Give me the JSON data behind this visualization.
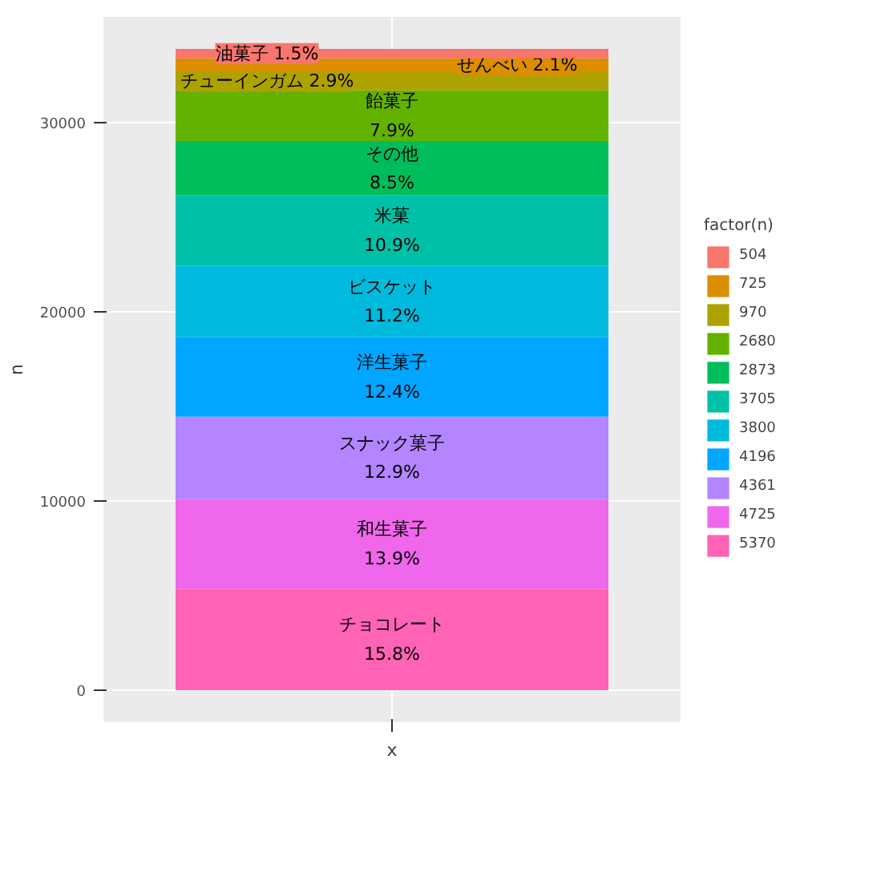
{
  "chart_data": {
    "type": "bar",
    "stacked": true,
    "xlabel": "x",
    "ylabel": "n",
    "legend_title": "factor(n)",
    "legend": "right",
    "grid": true,
    "tick_labels": "y",
    "categories": [
      null
    ],
    "ylim": [
      -1700,
      35600
    ],
    "yticks": [
      0,
      10000,
      20000,
      30000
    ],
    "series": [
      {
        "name": "5370",
        "color": "#FF63B6",
        "values": [
          5370
        ],
        "value_labels": [
          "チョコレート\n15.8%"
        ]
      },
      {
        "name": "4725",
        "color": "#EF67EB",
        "values": [
          4725
        ],
        "value_labels": [
          "和生菓子\n13.9%"
        ]
      },
      {
        "name": "4361",
        "color": "#B385FF",
        "values": [
          4361
        ],
        "value_labels": [
          "スナック菓子\n12.9%"
        ]
      },
      {
        "name": "4196",
        "color": "#00A6FF",
        "values": [
          4196
        ],
        "value_labels": [
          "洋生菓子\n12.4%"
        ]
      },
      {
        "name": "3800",
        "color": "#00BADE",
        "values": [
          3800
        ],
        "value_labels": [
          "ビスケット\n11.2%"
        ]
      },
      {
        "name": "3705",
        "color": "#00C1A7",
        "values": [
          3705
        ],
        "value_labels": [
          "米菓\n10.9%"
        ]
      },
      {
        "name": "2873",
        "color": "#00BD5C",
        "values": [
          2873
        ],
        "value_labels": [
          "その他\n8.5%"
        ]
      },
      {
        "name": "2680",
        "color": "#64B200",
        "values": [
          2680
        ],
        "value_labels": [
          "飴菓子\n7.9%"
        ]
      },
      {
        "name": "970",
        "color": "#AEA200",
        "values": [
          970
        ],
        "value_labels": [
          "チューインガム\n2.9%"
        ]
      },
      {
        "name": "725",
        "color": "#DB8E00",
        "values": [
          725
        ],
        "value_labels": [
          "せんべい\n2.1%"
        ]
      },
      {
        "name": "504",
        "color": "#F8766D",
        "values": [
          504
        ],
        "value_labels": [
          "油菓子\n1.5%"
        ]
      }
    ]
  }
}
